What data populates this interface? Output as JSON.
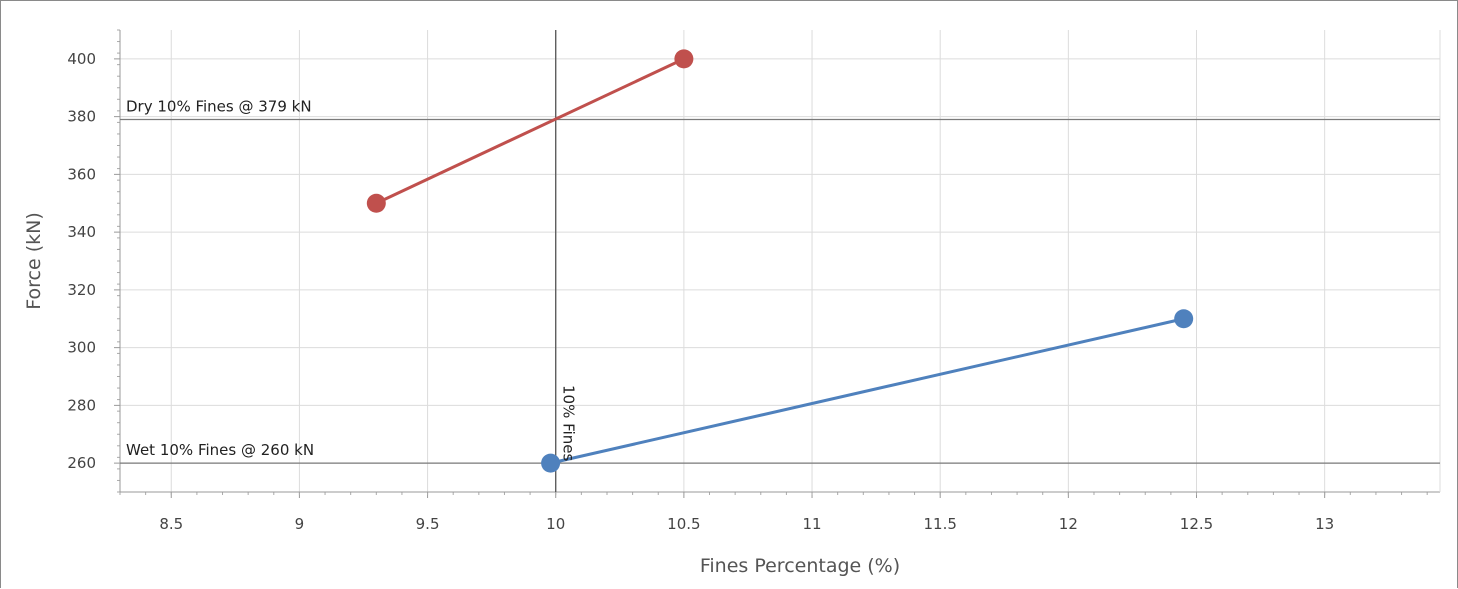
{
  "chart_data": {
    "type": "line",
    "xlabel": "Fines Percentage (%)",
    "ylabel": "Force (kN)",
    "xlim": [
      8.3,
      13.45
    ],
    "ylim": [
      250,
      410
    ],
    "x_ticks": [
      8.5,
      9,
      9.5,
      10,
      10.5,
      11,
      11.5,
      12,
      12.5,
      13
    ],
    "x_tick_labels": [
      "8.5",
      "9",
      "9.5",
      "10",
      "10.5",
      "11",
      "11.5",
      "12",
      "12.5",
      "13"
    ],
    "y_ticks": [
      260,
      280,
      300,
      320,
      340,
      360,
      380,
      400
    ],
    "y_tick_labels": [
      "260",
      "280",
      "300",
      "320",
      "340",
      "360",
      "380",
      "400"
    ],
    "grid": true,
    "series": [
      {
        "color": "#c0504d",
        "points": [
          [
            9.3,
            350
          ],
          [
            10.5,
            400
          ]
        ]
      },
      {
        "color": "#4f81bd",
        "points": [
          [
            9.98,
            260
          ],
          [
            12.45,
            310
          ]
        ]
      }
    ],
    "reference_lines": [
      {
        "orientation": "horizontal",
        "value": 379,
        "label": "Dry 10% Fines @ 379 kN"
      },
      {
        "orientation": "horizontal",
        "value": 260,
        "label": "Wet 10% Fines @ 260 kN"
      },
      {
        "orientation": "vertical",
        "value": 10,
        "label": "10% Fines"
      }
    ]
  }
}
